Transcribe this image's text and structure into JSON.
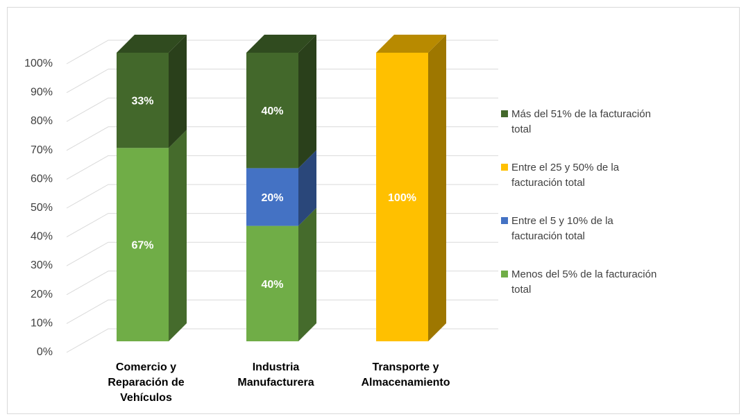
{
  "chart_data": {
    "type": "bar",
    "stacked": true,
    "style": "3d-100-percent-stacked-column",
    "categories": [
      [
        "Comercio y",
        "Reparación de",
        "Vehículos"
      ],
      [
        "Industria",
        "Manufacturera"
      ],
      [
        "Transporte y",
        "Almacenamiento"
      ]
    ],
    "series": [
      {
        "name": "Menos del 5% de la facturación total",
        "values": [
          67,
          40,
          0
        ],
        "color": "#70ad47"
      },
      {
        "name": "Entre el 5 y 10% de la facturación total",
        "values": [
          0,
          20,
          0
        ],
        "color": "#4472c4"
      },
      {
        "name": "Entre el 25 y 50% de la facturación total",
        "values": [
          0,
          0,
          100
        ],
        "color": "#ffc000"
      },
      {
        "name": "Más del 51% de la facturación total",
        "values": [
          33,
          40,
          0
        ],
        "color": "#43682b"
      }
    ],
    "data_labels": [
      [
        "67%",
        "40%",
        ""
      ],
      [
        "",
        "20%",
        ""
      ],
      [
        "",
        "",
        "100%"
      ],
      [
        "33%",
        "40%",
        ""
      ]
    ],
    "legend_order": [
      3,
      2,
      1,
      0
    ],
    "legend_lines": [
      [
        "Más del 51% de la facturación",
        "total"
      ],
      [
        "Entre el 25 y 50% de la",
        "facturación total"
      ],
      [
        "Entre el 5 y 10% de la",
        "facturación total"
      ],
      [
        "Menos del 5% de la facturación",
        "total"
      ]
    ],
    "y_ticks": [
      "0%",
      "10%",
      "20%",
      "30%",
      "40%",
      "50%",
      "60%",
      "70%",
      "80%",
      "90%",
      "100%"
    ],
    "ylim": [
      0,
      100
    ],
    "grid": true,
    "legend_position": "right"
  }
}
